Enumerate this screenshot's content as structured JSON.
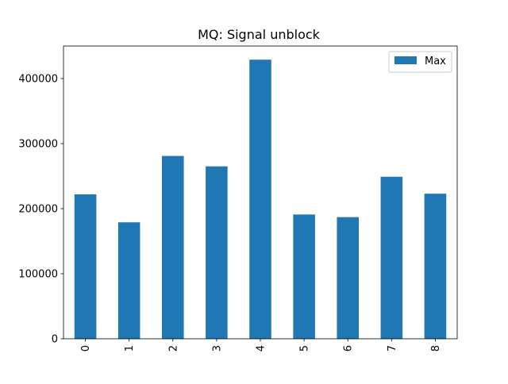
{
  "chart_data": {
    "type": "bar",
    "title": "MQ: Signal unblock",
    "xlabel": "",
    "ylabel": "",
    "categories": [
      "0",
      "1",
      "2",
      "3",
      "4",
      "5",
      "6",
      "7",
      "8"
    ],
    "series": [
      {
        "name": "Max",
        "color": "#1f77b4",
        "values": [
          222000,
          179000,
          281000,
          265000,
          429000,
          191000,
          187000,
          249000,
          223000
        ]
      }
    ],
    "ylim": [
      0,
      450000
    ],
    "yticks": [
      0,
      100000,
      200000,
      300000,
      400000
    ],
    "ytick_labels": [
      "0",
      "100000",
      "200000",
      "300000",
      "400000"
    ],
    "xtick_rotation": "vertical",
    "legend_position": "upper right",
    "grid": false
  }
}
